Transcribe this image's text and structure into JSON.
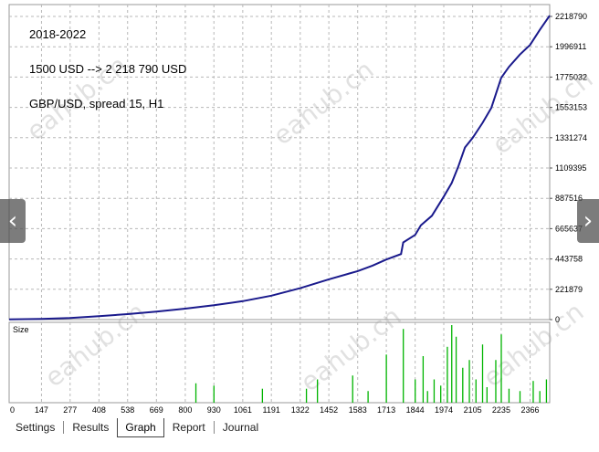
{
  "annotations": [
    "2018-2022",
    "1500 USD --> 2 218 790 USD",
    "GBP/USD, spread 15, H1"
  ],
  "watermark": "eahub.cn",
  "size_label": "Size",
  "nav": {
    "prev_icon": "chevron-left-icon",
    "next_icon": "chevron-right-icon",
    "prev_glyph": "‹",
    "next_glyph": "›"
  },
  "tabs": [
    {
      "label": "Settings",
      "active": false
    },
    {
      "label": "Results",
      "active": false
    },
    {
      "label": "Graph",
      "active": true
    },
    {
      "label": "Report",
      "active": false
    },
    {
      "label": "Journal",
      "active": false
    }
  ],
  "colors": {
    "balance_line": "#1a1a8c",
    "size_bars": "#00b400",
    "grid": "#b8b8b8"
  },
  "chart_data": {
    "type": "line",
    "title": "",
    "y_ticks": [
      0,
      221879,
      443758,
      665637,
      887516,
      1109395,
      1331274,
      1553153,
      1775032,
      1996911,
      2218790
    ],
    "x_ticks": [
      0,
      147,
      277,
      408,
      538,
      669,
      800,
      930,
      1061,
      1191,
      1322,
      1452,
      1583,
      1713,
      1844,
      1974,
      2105,
      2235,
      2366
    ],
    "xlim": [
      0,
      2455
    ],
    "ylim": [
      0,
      2300000
    ],
    "series": [
      {
        "points": [
          [
            0,
            1500
          ],
          [
            147,
            5000
          ],
          [
            277,
            12000
          ],
          [
            408,
            25000
          ],
          [
            538,
            40000
          ],
          [
            669,
            58000
          ],
          [
            800,
            80000
          ],
          [
            930,
            105000
          ],
          [
            1061,
            135000
          ],
          [
            1191,
            175000
          ],
          [
            1322,
            230000
          ],
          [
            1452,
            295000
          ],
          [
            1583,
            355000
          ],
          [
            1650,
            395000
          ],
          [
            1713,
            440000
          ],
          [
            1780,
            480000
          ],
          [
            1790,
            565000
          ],
          [
            1844,
            620000
          ],
          [
            1870,
            690000
          ],
          [
            1920,
            760000
          ],
          [
            1974,
            900000
          ],
          [
            2010,
            1000000
          ],
          [
            2040,
            1120000
          ],
          [
            2070,
            1260000
          ],
          [
            2105,
            1330000
          ],
          [
            2150,
            1440000
          ],
          [
            2190,
            1550000
          ],
          [
            2235,
            1770000
          ],
          [
            2270,
            1850000
          ],
          [
            2320,
            1940000
          ],
          [
            2366,
            2010000
          ],
          [
            2410,
            2120000
          ],
          [
            2455,
            2225000
          ]
        ]
      }
    ],
    "size_series": {
      "values": [
        [
          848,
          0.25
        ],
        [
          930,
          0.22
        ],
        [
          1150,
          0.18
        ],
        [
          1350,
          0.18
        ],
        [
          1400,
          0.3
        ],
        [
          1560,
          0.35
        ],
        [
          1630,
          0.15
        ],
        [
          1713,
          0.62
        ],
        [
          1790,
          0.95
        ],
        [
          1844,
          0.3
        ],
        [
          1880,
          0.6
        ],
        [
          1900,
          0.15
        ],
        [
          1930,
          0.3
        ],
        [
          1960,
          0.22
        ],
        [
          1990,
          0.72
        ],
        [
          2010,
          1.0
        ],
        [
          2030,
          0.85
        ],
        [
          2060,
          0.45
        ],
        [
          2090,
          0.55
        ],
        [
          2120,
          0.3
        ],
        [
          2150,
          0.75
        ],
        [
          2170,
          0.2
        ],
        [
          2210,
          0.55
        ],
        [
          2235,
          0.88
        ],
        [
          2270,
          0.18
        ],
        [
          2320,
          0.15
        ],
        [
          2380,
          0.28
        ],
        [
          2410,
          0.15
        ],
        [
          2440,
          0.3
        ]
      ]
    }
  }
}
